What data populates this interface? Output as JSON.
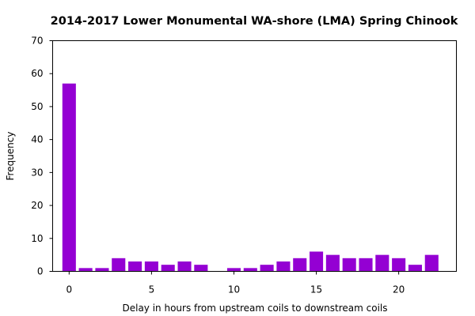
{
  "chart_data": {
    "type": "bar",
    "title": "2014-2017 Lower Monumental WA-shore (LMA) Spring Chinook",
    "xlabel": "Delay in hours from upstream coils to downstream coils",
    "ylabel": "Frequency",
    "xlim": [
      -1,
      23.5
    ],
    "ylim": [
      0,
      70
    ],
    "xticks": [
      0,
      5,
      10,
      15,
      20
    ],
    "yticks": [
      0,
      10,
      20,
      30,
      40,
      50,
      60,
      70
    ],
    "bar_color": "#9400d3",
    "grid": false,
    "series": [
      {
        "x": [
          0,
          1,
          2,
          3,
          4,
          5,
          6,
          7,
          8,
          9,
          10,
          11,
          12,
          13,
          14,
          15,
          16,
          17,
          18,
          19,
          20,
          21,
          22
        ],
        "values": [
          57,
          1,
          1,
          4,
          3,
          3,
          2,
          3,
          2,
          0,
          1,
          1,
          2,
          3,
          4,
          6,
          5,
          4,
          4,
          5,
          4,
          2,
          5
        ]
      }
    ]
  }
}
